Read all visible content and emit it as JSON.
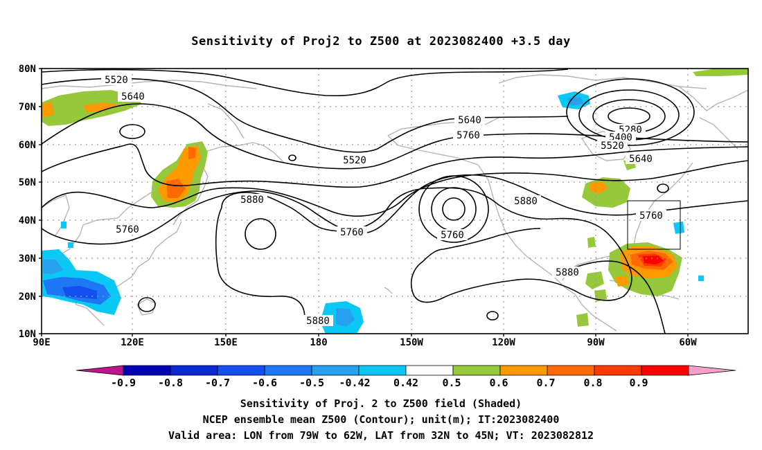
{
  "title": "Sensitivity of Proj2 to Z500 at 2023082400 +3.5 day",
  "lat_labels": [
    "80N",
    "70N",
    "60N",
    "50N",
    "40N",
    "30N",
    "20N",
    "10N"
  ],
  "lon_labels": [
    "90E",
    "120E",
    "150E",
    "180",
    "150W",
    "120W",
    "90W",
    "60W"
  ],
  "contour_labels": [
    "5520",
    "5640",
    "5520",
    "5640",
    "5760",
    "5280",
    "5400",
    "5520",
    "5640",
    "5880",
    "5760",
    "5760",
    "5760",
    "5760",
    "5880",
    "5880",
    "5880"
  ],
  "colorbar": {
    "labels": [
      "-0.9",
      "-0.8",
      "-0.7",
      "-0.6",
      "-0.5",
      "-0.42",
      "0.42",
      "0.5",
      "0.6",
      "0.7",
      "0.8",
      "0.9"
    ],
    "colors": [
      "#c0148c",
      "#0000b4",
      "#0a28d2",
      "#1450f0",
      "#1e78f5",
      "#28a0f0",
      "#0ac8f5",
      "#ffffff",
      "#96c83c",
      "#ff9900",
      "#ff6a00",
      "#ff3a00",
      "#ff0000",
      "#f5a0c8"
    ]
  },
  "captions": [
    "Sensitivity of Proj. 2 to Z500 field (Shaded)",
    "NCEP ensemble mean Z500 (Contour); unit(m); IT:2023082400",
    "Valid area: LON from 79W to 62W, LAT from 32N to 45N; VT: 2023082812"
  ]
}
